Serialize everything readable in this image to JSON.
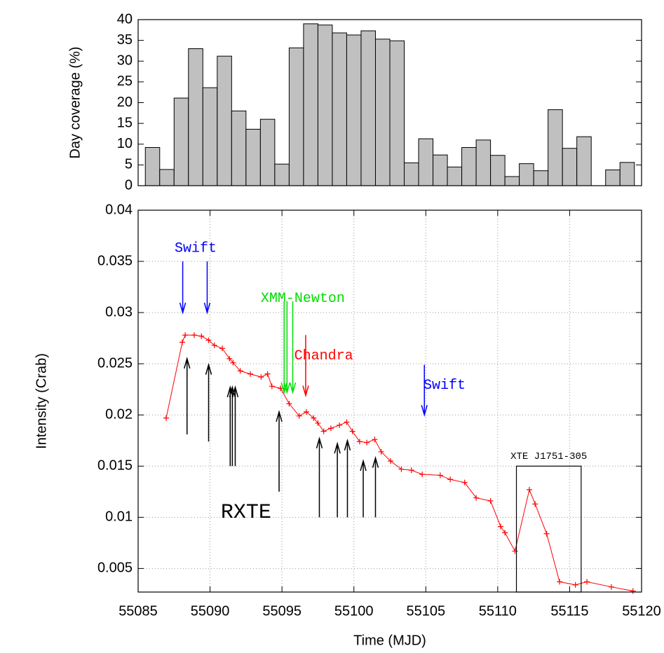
{
  "chart_data": [
    {
      "type": "histogram",
      "ylabel": "Day coverage (%)",
      "color": "#c0c0c0",
      "bins": [
        55085.5,
        55086.5,
        55087.5,
        55088.5,
        55089.5,
        55090.5,
        55091.5,
        55092.5,
        55093.5,
        55094.5,
        55095.5,
        55096.5,
        55097.5,
        55098.5,
        55099.5,
        55100.5,
        55101.5,
        55102.5,
        55103.5,
        55104.5,
        55105.5,
        55106.5,
        55107.5,
        55108.5,
        55109.5,
        55110.5,
        55111.5,
        55112.5,
        55113.5,
        55114.5,
        55115.5,
        55116.5,
        55117.5,
        55118.5,
        55119.5
      ],
      "values": [
        9.2,
        3.9,
        21.1,
        33,
        23.6,
        31.2,
        18,
        13.6,
        16,
        5.2,
        33.2,
        39,
        38.7,
        36.8,
        36.3,
        37.3,
        35.3,
        34.9,
        5.5,
        11.3,
        7.4,
        4.5,
        9.2,
        11,
        7.3,
        2.2,
        5.3,
        3.6,
        18.3,
        9,
        11.8,
        0,
        3.8,
        5.6
      ],
      "xlim": [
        55085,
        55120
      ],
      "ylim": [
        0,
        40
      ],
      "yticks": [
        0,
        5,
        10,
        15,
        20,
        25,
        30,
        35,
        40
      ]
    },
    {
      "type": "line",
      "xlabel": "Time (MJD)",
      "ylabel": "Intensity (Crab)",
      "color": "#ff0000",
      "grid": true,
      "x": [
        55086.95,
        55088.07,
        55088.27,
        55088.9,
        55089.4,
        55089.9,
        55090.3,
        55090.85,
        55091.35,
        55091.6,
        55092.1,
        55092.8,
        55093.55,
        55094.0,
        55094.3,
        55094.9,
        55095.5,
        55096.2,
        55096.7,
        55097.2,
        55097.5,
        55097.9,
        55098.4,
        55099.0,
        55099.5,
        55099.9,
        55100.4,
        55100.9,
        55101.45,
        55101.9,
        55102.55,
        55103.3,
        55104.0,
        55104.75,
        55106.0,
        55106.7,
        55107.7,
        55108.5,
        55109.5,
        55110.2,
        55110.5,
        55111.2,
        55112.2,
        55112.6,
        55113.4,
        55114.3,
        55115.4,
        55116.2,
        55117.9,
        55119.4
      ],
      "values": [
        0.0197,
        0.0271,
        0.0278,
        0.0278,
        0.0277,
        0.0273,
        0.0268,
        0.0265,
        0.0255,
        0.0251,
        0.0243,
        0.024,
        0.0237,
        0.024,
        0.0228,
        0.0226,
        0.0211,
        0.0199,
        0.0203,
        0.0197,
        0.0192,
        0.0184,
        0.0187,
        0.019,
        0.0193,
        0.0184,
        0.0174,
        0.0173,
        0.0176,
        0.0164,
        0.0155,
        0.0147,
        0.0146,
        0.0142,
        0.0141,
        0.0137,
        0.0134,
        0.0119,
        0.0116,
        0.0091,
        0.0085,
        0.0067,
        0.0127,
        0.0113,
        0.0084,
        0.0037,
        0.0034,
        0.0037,
        0.0032,
        0.0028
      ],
      "xlim": [
        55085,
        55120
      ],
      "xticks": [
        55085,
        55090,
        55095,
        55100,
        55105,
        55110,
        55115,
        55120
      ],
      "ylim": [
        0.0027,
        0.04
      ],
      "yticks": [
        0.005,
        0.01,
        0.015,
        0.02,
        0.025,
        0.03,
        0.035,
        0.04
      ],
      "annotations": [
        {
          "text": "Swift",
          "color": "#0000ff",
          "x": 55089,
          "y": 0.0363,
          "arrows": [
            {
              "x": 55088.1,
              "y_start": 0.035,
              "y_end": 0.03
            },
            {
              "x": 55089.8,
              "y_start": 0.035,
              "y_end": 0.03
            }
          ]
        },
        {
          "text": "XMM-Newton",
          "color": "#00dd00",
          "x": 55096.45,
          "y": 0.0314,
          "arrows": [
            {
              "x": 55095.15,
              "y_start": 0.0311,
              "y_end": 0.0222
            },
            {
              "x": 55095.35,
              "y_start": 0.0311,
              "y_end": 0.0222
            },
            {
              "x": 55095.75,
              "y_start": 0.0311,
              "y_end": 0.0222
            }
          ]
        },
        {
          "text": "Chandra",
          "color": "#ff0000",
          "x": 55097.9,
          "y": 0.0258,
          "arrows": [
            {
              "x": 55096.65,
              "y_start": 0.0278,
              "y_end": 0.0219
            }
          ]
        },
        {
          "text": "Swift",
          "color": "#0000ff",
          "x": 55106.3,
          "y": 0.0229,
          "arrows": [
            {
              "x": 55104.9,
              "y_start": 0.0249,
              "y_end": 0.02
            }
          ]
        },
        {
          "text": "RXTE",
          "color": "#000000",
          "x": 55092.5,
          "y": 0.0105,
          "arrows": [
            {
              "x": 55088.4,
              "y_start": 0.0181,
              "y_end": 0.0255
            },
            {
              "x": 55089.9,
              "y_start": 0.0174,
              "y_end": 0.0249
            },
            {
              "x": 55091.4,
              "y_start": 0.015,
              "y_end": 0.0227
            },
            {
              "x": 55091.55,
              "y_start": 0.015,
              "y_end": 0.0227
            },
            {
              "x": 55091.75,
              "y_start": 0.015,
              "y_end": 0.0227
            },
            {
              "x": 55094.8,
              "y_start": 0.0125,
              "y_end": 0.0203
            },
            {
              "x": 55097.6,
              "y_start": 0.01,
              "y_end": 0.0177
            },
            {
              "x": 55098.85,
              "y_start": 0.01,
              "y_end": 0.0172
            },
            {
              "x": 55099.55,
              "y_start": 0.01,
              "y_end": 0.0175
            },
            {
              "x": 55100.65,
              "y_start": 0.01,
              "y_end": 0.0155
            },
            {
              "x": 55101.5,
              "y_start": 0.01,
              "y_end": 0.0158
            }
          ]
        }
      ],
      "box": {
        "text": "XTE J1751-305",
        "xlim": [
          55111.3,
          55115.8
        ],
        "ylim": [
          0.0027,
          0.015
        ]
      }
    }
  ]
}
